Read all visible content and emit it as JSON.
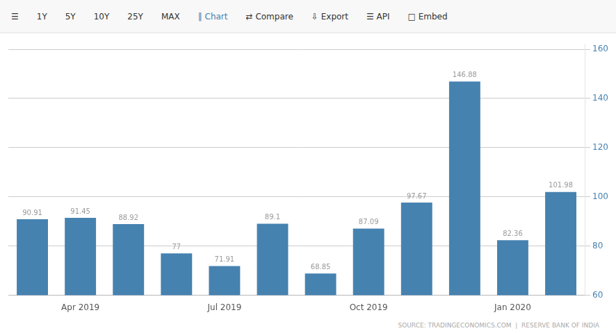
{
  "chart_data": {
    "type": "bar",
    "categories": [
      null,
      "Apr 2019",
      null,
      null,
      "Jul 2019",
      null,
      null,
      "Oct 2019",
      null,
      null,
      "Jan 2020",
      null
    ],
    "values": [
      90.91,
      91.45,
      88.92,
      77.0,
      71.91,
      89.1,
      68.85,
      87.09,
      97.67,
      146.88,
      82.36,
      101.98
    ],
    "color": "#4682b0",
    "ylim": [
      60,
      162
    ],
    "yticks": [
      60,
      80,
      100,
      120,
      140,
      160
    ],
    "grid": true,
    "data_labels": true,
    "annotations": [
      "☰",
      "1Y",
      "5Y",
      "10Y",
      "25Y",
      "MAX",
      "‖ Chart",
      "⇄ Compare",
      "⇩ Export",
      "☰ API",
      "□ Embed",
      "SOURCE: TRADINGECONOMICS.COM  |  RESERVE BANK OF INDIA"
    ]
  }
}
